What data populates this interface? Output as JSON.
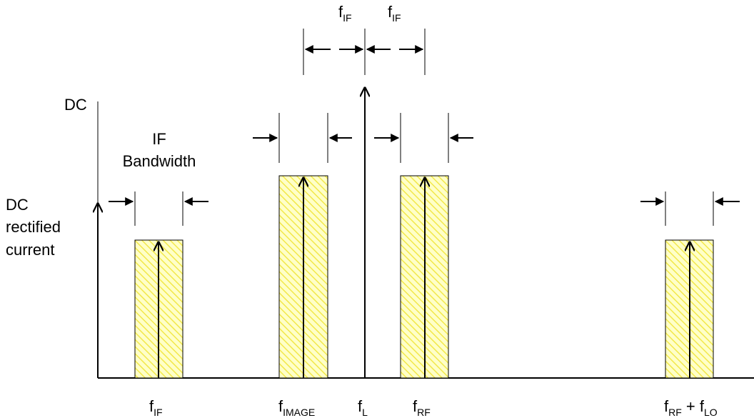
{
  "labels": {
    "dc_top": "DC",
    "if_bandwidth_line1": "IF",
    "if_bandwidth_line2": "Bandwidth",
    "dc_rect_line1": "DC",
    "dc_rect_line2": "rectified",
    "dc_rect_line3": "current",
    "fif_left": {
      "base": "f",
      "sub": "IF"
    },
    "fif_right": {
      "base": "f",
      "sub": "IF"
    }
  },
  "axis_labels": {
    "f_if": {
      "base": "f",
      "sub": "IF"
    },
    "f_image": {
      "base": "f",
      "sub": "IMAGE"
    },
    "f_l": {
      "base": "f",
      "sub": "L"
    },
    "f_rf": {
      "base": "f",
      "sub": "RF"
    },
    "f_rf_lo": {
      "base": "f",
      "sub": "RF",
      "mid": " + f",
      "sub2": "LO"
    }
  },
  "colors": {
    "hatch_yellow": "#f2e84a",
    "band_fill": "#ffffc8",
    "line": "#000000"
  }
}
